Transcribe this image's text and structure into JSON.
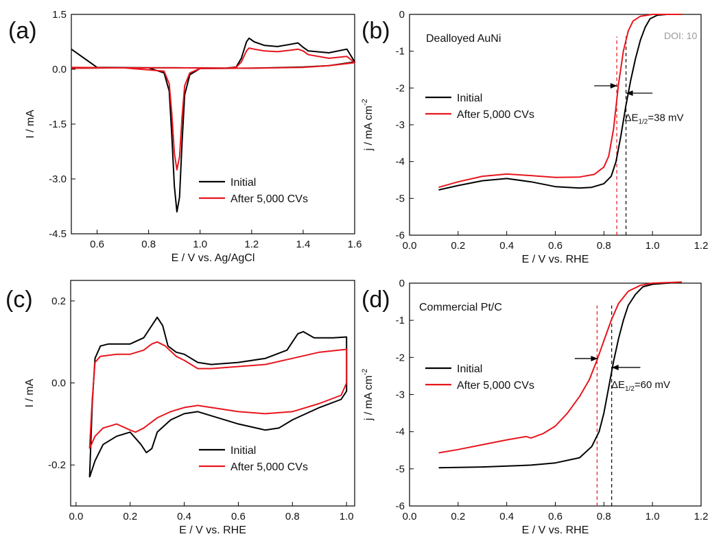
{
  "watermark": "DOI: 10",
  "colors": {
    "initial": "#000000",
    "after": "#e8141c"
  },
  "legend_labels": [
    "Initial",
    "After 5,000 CVs"
  ],
  "chart_data": [
    {
      "panel": "(a)",
      "type": "line",
      "xlabel": "E / V vs. Ag/AgCl",
      "ylabel": "I / mA",
      "xlim": [
        0.5,
        1.6
      ],
      "ylim": [
        -4.5,
        1.5
      ],
      "xticks": [
        "0.6",
        "0.8",
        "1.0",
        "1.2",
        "1.4",
        "1.6"
      ],
      "yticks": [
        "-4.5",
        "-3.0",
        "-1.5",
        "0.0",
        "1.5"
      ],
      "legend": "bottom-right",
      "grid": false,
      "series": [
        {
          "name": "Initial",
          "color": "#000000",
          "points": [
            [
              0.5,
              0.55
            ],
            [
              0.6,
              0.05
            ],
            [
              0.8,
              0.04
            ],
            [
              0.86,
              -0.1
            ],
            [
              0.88,
              -0.6
            ],
            [
              0.89,
              -1.8
            ],
            [
              0.9,
              -3.2
            ],
            [
              0.91,
              -3.9
            ],
            [
              0.92,
              -3.5
            ],
            [
              0.93,
              -2.0
            ],
            [
              0.94,
              -0.7
            ],
            [
              0.96,
              -0.15
            ],
            [
              1.0,
              0.02
            ],
            [
              1.2,
              0.03
            ],
            [
              1.4,
              0.06
            ],
            [
              1.5,
              0.1
            ],
            [
              1.6,
              0.2
            ],
            [
              1.57,
              0.55
            ],
            [
              1.5,
              0.45
            ],
            [
              1.42,
              0.5
            ],
            [
              1.4,
              0.6
            ],
            [
              1.38,
              0.72
            ],
            [
              1.35,
              0.68
            ],
            [
              1.3,
              0.62
            ],
            [
              1.25,
              0.65
            ],
            [
              1.21,
              0.75
            ],
            [
              1.19,
              0.85
            ],
            [
              1.18,
              0.75
            ],
            [
              1.16,
              0.3
            ],
            [
              1.14,
              0.06
            ],
            [
              1.1,
              0.03
            ],
            [
              0.9,
              0.04
            ],
            [
              0.7,
              0.04
            ],
            [
              0.5,
              0.03
            ]
          ]
        },
        {
          "name": "After 5,000 CVs",
          "color": "#e8141c",
          "points": [
            [
              0.5,
              0.05
            ],
            [
              0.7,
              0.04
            ],
            [
              0.86,
              -0.05
            ],
            [
              0.88,
              -0.4
            ],
            [
              0.89,
              -1.2
            ],
            [
              0.9,
              -2.3
            ],
            [
              0.91,
              -2.75
            ],
            [
              0.92,
              -2.4
            ],
            [
              0.93,
              -1.3
            ],
            [
              0.94,
              -0.45
            ],
            [
              0.96,
              -0.1
            ],
            [
              1.0,
              0.02
            ],
            [
              1.2,
              0.03
            ],
            [
              1.4,
              0.05
            ],
            [
              1.5,
              0.1
            ],
            [
              1.6,
              0.18
            ],
            [
              1.57,
              0.35
            ],
            [
              1.5,
              0.3
            ],
            [
              1.42,
              0.4
            ],
            [
              1.4,
              0.5
            ],
            [
              1.38,
              0.55
            ],
            [
              1.35,
              0.52
            ],
            [
              1.3,
              0.48
            ],
            [
              1.25,
              0.5
            ],
            [
              1.21,
              0.55
            ],
            [
              1.19,
              0.58
            ],
            [
              1.18,
              0.5
            ],
            [
              1.16,
              0.2
            ],
            [
              1.14,
              0.05
            ],
            [
              1.1,
              0.03
            ],
            [
              0.9,
              0.04
            ],
            [
              0.7,
              0.04
            ],
            [
              0.5,
              0.03
            ]
          ]
        }
      ]
    },
    {
      "panel": "(b)",
      "type": "line",
      "title": "Dealloyed AuNi",
      "xlabel": "E / V vs. RHE",
      "ylabel": "j / mA cm",
      "ylabel_sup": "-2",
      "xlim": [
        0.0,
        1.2
      ],
      "ylim": [
        -6,
        0
      ],
      "xticks": [
        "0.0",
        "0.2",
        "0.4",
        "0.6",
        "0.8",
        "1.0",
        "1.2"
      ],
      "yticks": [
        "-6",
        "-5",
        "-4",
        "-3",
        "-2",
        "-1",
        "0"
      ],
      "legend": "upper-left",
      "grid": false,
      "annotation": {
        "prefix": "ΔE",
        "sub": "1/2",
        "suffix": "=38 mV",
        "x": 0.885,
        "y": -2.9
      },
      "dashed_lines": [
        {
          "x": 0.853,
          "color": "#e8141c"
        },
        {
          "x": 0.891,
          "color": "#000000"
        }
      ],
      "arrows": [
        {
          "from": [
            0.76,
            -1.94
          ],
          "to": [
            0.855,
            -1.94
          ]
        },
        {
          "from": [
            1.0,
            -2.14
          ],
          "to": [
            0.891,
            -2.14
          ]
        }
      ],
      "series": [
        {
          "name": "Initial",
          "color": "#000000",
          "points": [
            [
              0.12,
              -4.77
            ],
            [
              0.2,
              -4.65
            ],
            [
              0.3,
              -4.52
            ],
            [
              0.4,
              -4.46
            ],
            [
              0.5,
              -4.55
            ],
            [
              0.6,
              -4.68
            ],
            [
              0.7,
              -4.72
            ],
            [
              0.75,
              -4.7
            ],
            [
              0.8,
              -4.6
            ],
            [
              0.83,
              -4.4
            ],
            [
              0.85,
              -4.0
            ],
            [
              0.87,
              -3.3
            ],
            [
              0.89,
              -2.5
            ],
            [
              0.91,
              -1.8
            ],
            [
              0.93,
              -1.2
            ],
            [
              0.95,
              -0.7
            ],
            [
              0.97,
              -0.35
            ],
            [
              0.99,
              -0.12
            ],
            [
              1.02,
              -0.02
            ],
            [
              1.06,
              0.0
            ],
            [
              1.12,
              0.0
            ]
          ]
        },
        {
          "name": "After 5,000 CVs",
          "color": "#e8141c",
          "points": [
            [
              0.12,
              -4.7
            ],
            [
              0.2,
              -4.55
            ],
            [
              0.3,
              -4.4
            ],
            [
              0.4,
              -4.34
            ],
            [
              0.5,
              -4.38
            ],
            [
              0.6,
              -4.43
            ],
            [
              0.7,
              -4.42
            ],
            [
              0.76,
              -4.35
            ],
            [
              0.8,
              -4.15
            ],
            [
              0.82,
              -3.85
            ],
            [
              0.84,
              -3.1
            ],
            [
              0.86,
              -1.9
            ],
            [
              0.88,
              -1.0
            ],
            [
              0.9,
              -0.45
            ],
            [
              0.92,
              -0.18
            ],
            [
              0.95,
              -0.05
            ],
            [
              1.0,
              0.0
            ],
            [
              1.12,
              0.0
            ]
          ]
        }
      ]
    },
    {
      "panel": "(c)",
      "type": "line",
      "xlabel": "E / V vs. RHE",
      "ylabel": "I / mA",
      "xlim": [
        -0.02,
        1.03
      ],
      "ylim": [
        -0.3,
        0.25
      ],
      "xticks": [
        "0.0",
        "0.2",
        "0.4",
        "0.6",
        "0.8",
        "1.0"
      ],
      "ytick_values": [
        -0.2,
        0.0,
        0.2
      ],
      "yticks": [
        "-0.2",
        "0.0",
        "0.2"
      ],
      "legend": "bottom-right",
      "grid": false,
      "series": [
        {
          "name": "Initial",
          "color": "#000000",
          "points": [
            [
              0.05,
              -0.23
            ],
            [
              0.06,
              -0.05
            ],
            [
              0.07,
              0.06
            ],
            [
              0.09,
              0.09
            ],
            [
              0.12,
              0.095
            ],
            [
              0.2,
              0.095
            ],
            [
              0.25,
              0.11
            ],
            [
              0.28,
              0.14
            ],
            [
              0.3,
              0.16
            ],
            [
              0.32,
              0.14
            ],
            [
              0.34,
              0.09
            ],
            [
              0.37,
              0.075
            ],
            [
              0.4,
              0.07
            ],
            [
              0.45,
              0.05
            ],
            [
              0.5,
              0.045
            ],
            [
              0.6,
              0.05
            ],
            [
              0.7,
              0.06
            ],
            [
              0.78,
              0.08
            ],
            [
              0.82,
              0.12
            ],
            [
              0.84,
              0.125
            ],
            [
              0.88,
              0.11
            ],
            [
              0.95,
              0.11
            ],
            [
              1.0,
              0.112
            ],
            [
              1.0,
              -0.02
            ],
            [
              0.98,
              -0.04
            ],
            [
              0.9,
              -0.06
            ],
            [
              0.8,
              -0.09
            ],
            [
              0.75,
              -0.11
            ],
            [
              0.7,
              -0.115
            ],
            [
              0.6,
              -0.1
            ],
            [
              0.5,
              -0.08
            ],
            [
              0.45,
              -0.07
            ],
            [
              0.4,
              -0.075
            ],
            [
              0.35,
              -0.09
            ],
            [
              0.3,
              -0.12
            ],
            [
              0.28,
              -0.16
            ],
            [
              0.26,
              -0.17
            ],
            [
              0.24,
              -0.15
            ],
            [
              0.2,
              -0.12
            ],
            [
              0.15,
              -0.13
            ],
            [
              0.1,
              -0.15
            ],
            [
              0.07,
              -0.19
            ],
            [
              0.05,
              -0.23
            ]
          ]
        },
        {
          "name": "After 5,000 CVs",
          "color": "#e8141c",
          "points": [
            [
              0.05,
              -0.16
            ],
            [
              0.06,
              -0.04
            ],
            [
              0.07,
              0.05
            ],
            [
              0.09,
              0.065
            ],
            [
              0.15,
              0.07
            ],
            [
              0.2,
              0.07
            ],
            [
              0.25,
              0.08
            ],
            [
              0.28,
              0.095
            ],
            [
              0.3,
              0.1
            ],
            [
              0.33,
              0.09
            ],
            [
              0.37,
              0.065
            ],
            [
              0.4,
              0.055
            ],
            [
              0.45,
              0.035
            ],
            [
              0.5,
              0.035
            ],
            [
              0.6,
              0.04
            ],
            [
              0.7,
              0.045
            ],
            [
              0.8,
              0.06
            ],
            [
              0.9,
              0.075
            ],
            [
              1.0,
              0.082
            ],
            [
              1.0,
              0.0
            ],
            [
              0.98,
              -0.03
            ],
            [
              0.9,
              -0.05
            ],
            [
              0.8,
              -0.07
            ],
            [
              0.7,
              -0.075
            ],
            [
              0.6,
              -0.07
            ],
            [
              0.5,
              -0.06
            ],
            [
              0.45,
              -0.055
            ],
            [
              0.4,
              -0.06
            ],
            [
              0.35,
              -0.07
            ],
            [
              0.3,
              -0.085
            ],
            [
              0.25,
              -0.11
            ],
            [
              0.22,
              -0.12
            ],
            [
              0.2,
              -0.115
            ],
            [
              0.15,
              -0.1
            ],
            [
              0.1,
              -0.11
            ],
            [
              0.07,
              -0.13
            ],
            [
              0.05,
              -0.16
            ]
          ]
        }
      ]
    },
    {
      "panel": "(d)",
      "type": "line",
      "title": "Commercial Pt/C",
      "xlabel": "E / V vs. RHE",
      "ylabel": "j / mA cm",
      "ylabel_sup": "-2",
      "xlim": [
        0.0,
        1.2
      ],
      "ylim": [
        -6,
        0
      ],
      "xticks": [
        "0.0",
        "0.2",
        "0.4",
        "0.6",
        "0.8",
        "1.0",
        "1.2"
      ],
      "yticks": [
        "-6",
        "-5",
        "-4",
        "-3",
        "-2",
        "-1",
        "0"
      ],
      "legend": "upper-left",
      "grid": false,
      "annotation": {
        "prefix": "ΔE",
        "sub": "1/2",
        "suffix": "=60 mV",
        "x": 0.83,
        "y": -2.82
      },
      "dashed_lines": [
        {
          "x": 0.772,
          "color": "#e8141c"
        },
        {
          "x": 0.832,
          "color": "#000000"
        }
      ],
      "arrows": [
        {
          "from": [
            0.68,
            -2.03
          ],
          "to": [
            0.775,
            -2.03
          ]
        },
        {
          "from": [
            0.95,
            -2.27
          ],
          "to": [
            0.832,
            -2.27
          ]
        }
      ],
      "series": [
        {
          "name": "Initial",
          "color": "#000000",
          "points": [
            [
              0.12,
              -4.97
            ],
            [
              0.3,
              -4.95
            ],
            [
              0.5,
              -4.9
            ],
            [
              0.6,
              -4.84
            ],
            [
              0.7,
              -4.7
            ],
            [
              0.75,
              -4.4
            ],
            [
              0.78,
              -4.0
            ],
            [
              0.8,
              -3.5
            ],
            [
              0.82,
              -2.8
            ],
            [
              0.84,
              -2.1
            ],
            [
              0.86,
              -1.5
            ],
            [
              0.88,
              -1.0
            ],
            [
              0.9,
              -0.6
            ],
            [
              0.93,
              -0.3
            ],
            [
              0.96,
              -0.1
            ],
            [
              1.0,
              -0.03
            ],
            [
              1.06,
              0.0
            ],
            [
              1.12,
              0.03
            ]
          ]
        },
        {
          "name": "After 5,000 CVs",
          "color": "#e8141c",
          "points": [
            [
              0.12,
              -4.57
            ],
            [
              0.2,
              -4.48
            ],
            [
              0.3,
              -4.35
            ],
            [
              0.4,
              -4.22
            ],
            [
              0.48,
              -4.13
            ],
            [
              0.5,
              -4.17
            ],
            [
              0.55,
              -4.05
            ],
            [
              0.6,
              -3.85
            ],
            [
              0.65,
              -3.5
            ],
            [
              0.7,
              -3.05
            ],
            [
              0.74,
              -2.6
            ],
            [
              0.77,
              -2.1
            ],
            [
              0.8,
              -1.55
            ],
            [
              0.83,
              -1.0
            ],
            [
              0.86,
              -0.55
            ],
            [
              0.9,
              -0.22
            ],
            [
              0.95,
              -0.06
            ],
            [
              1.0,
              0.0
            ],
            [
              1.12,
              0.03
            ]
          ]
        }
      ]
    }
  ]
}
